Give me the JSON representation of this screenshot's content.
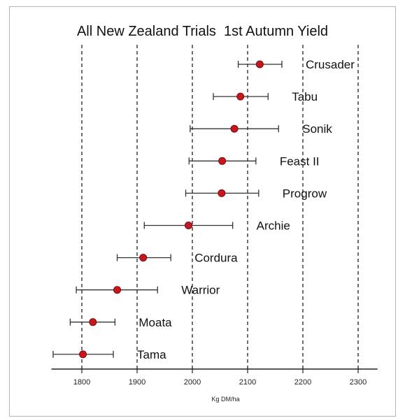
{
  "chart_data": {
    "type": "scatter",
    "title": "All New Zealand Trials  1st Autumn Yield",
    "xlabel": "Kg DM/ha",
    "ylabel": "",
    "xlim": [
      1745,
      2335
    ],
    "xticks": [
      1800,
      1900,
      2000,
      2100,
      2200,
      2300
    ],
    "grid": "vertical dashed",
    "series": [
      {
        "points": [
          {
            "label": "Crusader",
            "mean": 2122,
            "low": 2083,
            "high": 2162
          },
          {
            "label": "Tabu",
            "mean": 2087,
            "low": 2038,
            "high": 2137
          },
          {
            "label": "Sonik",
            "mean": 2076,
            "low": 1996,
            "high": 2156
          },
          {
            "label": "Feast II",
            "mean": 2054,
            "low": 1994,
            "high": 2115
          },
          {
            "label": "Progrow",
            "mean": 2053,
            "low": 1988,
            "high": 2120
          },
          {
            "label": "Archie",
            "mean": 1993,
            "low": 1913,
            "high": 2073
          },
          {
            "label": "Cordura",
            "mean": 1911,
            "low": 1864,
            "high": 1961
          },
          {
            "label": "Warrior",
            "mean": 1864,
            "low": 1790,
            "high": 1937
          },
          {
            "label": "Moata",
            "mean": 1820,
            "low": 1779,
            "high": 1860
          },
          {
            "label": "Tama",
            "mean": 1802,
            "low": 1748,
            "high": 1857
          }
        ]
      }
    ],
    "colors": {
      "point": "#c8161d",
      "point_edge": "#7a0c10",
      "errorbar": "#333333",
      "grid": "#222222"
    }
  }
}
